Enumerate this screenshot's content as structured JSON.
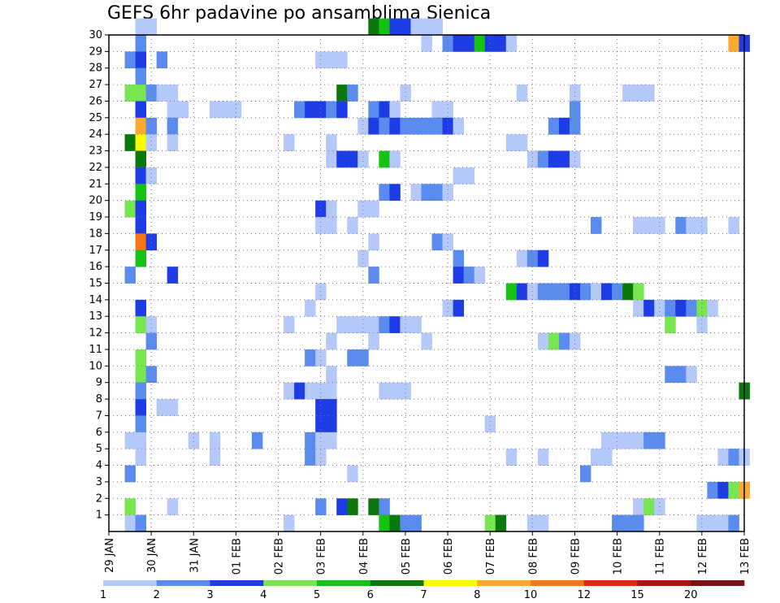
{
  "chart_data": {
    "type": "heatmap",
    "title": "GEFS 6hr padavine po ansamblima Sjenica",
    "xlabel": "",
    "ylabel": "",
    "x_ticks": [
      "29 JAN",
      "30 JAN",
      "31 JAN",
      "01 FEB",
      "02 FEB",
      "03 FEB",
      "04 FEB",
      "05 FEB",
      "06 FEB",
      "07 FEB",
      "08 FEB",
      "09 FEB",
      "10 FEB",
      "11 FEB",
      "12 FEB",
      "13 FEB"
    ],
    "x_range_steps_6h": [
      0,
      60
    ],
    "y_ticks": [
      "1",
      "2",
      "3",
      "4",
      "5",
      "6",
      "7",
      "8",
      "9",
      "10",
      "11",
      "12",
      "13",
      "14",
      "15",
      "16",
      "17",
      "18",
      "19",
      "20",
      "21",
      "22",
      "23",
      "24",
      "25",
      "26",
      "27",
      "28",
      "29",
      "30"
    ],
    "y_range_members": [
      0,
      30
    ],
    "grid": "dotted",
    "legend": {
      "placement": "bottom",
      "labels": [
        "1",
        "2",
        "3",
        "4",
        "5",
        "6",
        "7",
        "8",
        "10",
        "12",
        "15",
        "20"
      ],
      "colors": [
        "#b4c8fa",
        "#5a8cf0",
        "#1e3ce6",
        "#78e650",
        "#14c314",
        "#0a780a",
        "#fafa00",
        "#faaa2d",
        "#f57814",
        "#e1280f",
        "#b40f0f",
        "#781414"
      ]
    },
    "cells": [
      [
        30,
        3,
        1
      ],
      [
        30,
        4,
        1
      ],
      [
        30,
        25,
        6
      ],
      [
        30,
        26,
        5
      ],
      [
        30,
        27,
        3
      ],
      [
        30,
        28,
        3
      ],
      [
        30,
        29,
        1
      ],
      [
        30,
        30,
        1
      ],
      [
        30,
        31,
        1
      ],
      [
        29,
        3,
        2
      ],
      [
        29,
        30,
        1
      ],
      [
        29,
        32,
        2
      ],
      [
        29,
        33,
        3
      ],
      [
        29,
        34,
        3
      ],
      [
        29,
        35,
        5
      ],
      [
        29,
        36,
        3
      ],
      [
        29,
        37,
        3
      ],
      [
        29,
        38,
        1
      ],
      [
        29,
        59,
        8
      ],
      [
        29,
        60,
        3
      ],
      [
        28,
        2,
        2
      ],
      [
        28,
        3,
        3
      ],
      [
        28,
        5,
        2
      ],
      [
        28,
        20,
        1
      ],
      [
        28,
        21,
        1
      ],
      [
        28,
        22,
        1
      ],
      [
        27,
        3,
        2
      ],
      [
        26,
        2,
        4
      ],
      [
        26,
        3,
        4
      ],
      [
        26,
        4,
        2
      ],
      [
        26,
        5,
        1
      ],
      [
        26,
        6,
        1
      ],
      [
        26,
        22,
        6
      ],
      [
        26,
        23,
        2
      ],
      [
        26,
        28,
        1
      ],
      [
        26,
        39,
        1
      ],
      [
        26,
        44,
        1
      ],
      [
        26,
        49,
        1
      ],
      [
        26,
        50,
        1
      ],
      [
        26,
        51,
        1
      ],
      [
        25,
        3,
        3
      ],
      [
        25,
        6,
        1
      ],
      [
        25,
        7,
        1
      ],
      [
        25,
        10,
        1
      ],
      [
        25,
        11,
        1
      ],
      [
        25,
        12,
        1
      ],
      [
        25,
        18,
        2
      ],
      [
        25,
        19,
        3
      ],
      [
        25,
        20,
        3
      ],
      [
        25,
        21,
        2
      ],
      [
        25,
        22,
        3
      ],
      [
        25,
        25,
        2
      ],
      [
        25,
        26,
        3
      ],
      [
        25,
        27,
        1
      ],
      [
        25,
        31,
        1
      ],
      [
        25,
        32,
        1
      ],
      [
        25,
        44,
        2
      ],
      [
        24,
        3,
        8
      ],
      [
        24,
        4,
        2
      ],
      [
        24,
        6,
        2
      ],
      [
        24,
        24,
        1
      ],
      [
        24,
        25,
        3
      ],
      [
        24,
        26,
        2
      ],
      [
        24,
        27,
        3
      ],
      [
        24,
        28,
        2
      ],
      [
        24,
        29,
        2
      ],
      [
        24,
        30,
        2
      ],
      [
        24,
        31,
        2
      ],
      [
        24,
        32,
        3
      ],
      [
        24,
        33,
        1
      ],
      [
        24,
        42,
        2
      ],
      [
        24,
        43,
        3
      ],
      [
        24,
        44,
        2
      ],
      [
        23,
        2,
        6
      ],
      [
        23,
        3,
        7
      ],
      [
        23,
        4,
        1
      ],
      [
        23,
        6,
        1
      ],
      [
        23,
        17,
        1
      ],
      [
        23,
        21,
        1
      ],
      [
        23,
        38,
        1
      ],
      [
        23,
        39,
        1
      ],
      [
        22,
        3,
        6
      ],
      [
        22,
        21,
        1
      ],
      [
        22,
        22,
        3
      ],
      [
        22,
        23,
        3
      ],
      [
        22,
        24,
        1
      ],
      [
        22,
        26,
        5
      ],
      [
        22,
        27,
        1
      ],
      [
        22,
        40,
        1
      ],
      [
        22,
        41,
        2
      ],
      [
        22,
        42,
        3
      ],
      [
        22,
        43,
        3
      ],
      [
        22,
        44,
        1
      ],
      [
        21,
        3,
        3
      ],
      [
        21,
        4,
        1
      ],
      [
        21,
        33,
        1
      ],
      [
        21,
        34,
        1
      ],
      [
        20,
        3,
        5
      ],
      [
        20,
        26,
        2
      ],
      [
        20,
        27,
        3
      ],
      [
        20,
        29,
        1
      ],
      [
        20,
        30,
        2
      ],
      [
        20,
        31,
        2
      ],
      [
        20,
        32,
        1
      ],
      [
        19,
        2,
        4
      ],
      [
        19,
        3,
        3
      ],
      [
        19,
        20,
        3
      ],
      [
        19,
        21,
        1
      ],
      [
        19,
        24,
        1
      ],
      [
        19,
        25,
        1
      ],
      [
        18,
        3,
        3
      ],
      [
        18,
        20,
        1
      ],
      [
        18,
        21,
        1
      ],
      [
        18,
        23,
        1
      ],
      [
        18,
        46,
        2
      ],
      [
        18,
        50,
        1
      ],
      [
        18,
        51,
        1
      ],
      [
        18,
        52,
        1
      ],
      [
        18,
        54,
        2
      ],
      [
        18,
        55,
        1
      ],
      [
        18,
        56,
        1
      ],
      [
        18,
        59,
        1
      ],
      [
        17,
        3,
        9
      ],
      [
        17,
        4,
        3
      ],
      [
        17,
        25,
        1
      ],
      [
        17,
        31,
        2
      ],
      [
        17,
        32,
        1
      ],
      [
        16,
        3,
        5
      ],
      [
        16,
        24,
        1
      ],
      [
        16,
        33,
        2
      ],
      [
        16,
        39,
        1
      ],
      [
        16,
        40,
        2
      ],
      [
        16,
        41,
        3
      ],
      [
        15,
        2,
        2
      ],
      [
        15,
        6,
        3
      ],
      [
        15,
        25,
        2
      ],
      [
        15,
        33,
        3
      ],
      [
        15,
        34,
        2
      ],
      [
        15,
        35,
        1
      ],
      [
        14,
        20,
        1
      ],
      [
        14,
        38,
        5
      ],
      [
        14,
        39,
        3
      ],
      [
        14,
        40,
        1
      ],
      [
        14,
        41,
        2
      ],
      [
        14,
        42,
        2
      ],
      [
        14,
        43,
        2
      ],
      [
        14,
        44,
        3
      ],
      [
        14,
        45,
        2
      ],
      [
        14,
        46,
        1
      ],
      [
        14,
        47,
        3
      ],
      [
        14,
        48,
        2
      ],
      [
        14,
        49,
        6
      ],
      [
        14,
        50,
        4
      ],
      [
        13,
        3,
        3
      ],
      [
        13,
        19,
        1
      ],
      [
        13,
        32,
        1
      ],
      [
        13,
        33,
        3
      ],
      [
        13,
        50,
        1
      ],
      [
        13,
        51,
        3
      ],
      [
        13,
        52,
        1
      ],
      [
        13,
        53,
        2
      ],
      [
        13,
        54,
        3
      ],
      [
        13,
        55,
        2
      ],
      [
        13,
        56,
        4
      ],
      [
        13,
        57,
        1
      ],
      [
        12,
        3,
        4
      ],
      [
        12,
        4,
        1
      ],
      [
        12,
        17,
        1
      ],
      [
        12,
        22,
        1
      ],
      [
        12,
        23,
        1
      ],
      [
        12,
        24,
        1
      ],
      [
        12,
        25,
        1
      ],
      [
        12,
        26,
        2
      ],
      [
        12,
        27,
        3
      ],
      [
        12,
        28,
        1
      ],
      [
        12,
        29,
        1
      ],
      [
        12,
        53,
        4
      ],
      [
        12,
        56,
        1
      ],
      [
        11,
        4,
        2
      ],
      [
        11,
        21,
        1
      ],
      [
        11,
        25,
        1
      ],
      [
        11,
        30,
        1
      ],
      [
        11,
        41,
        1
      ],
      [
        11,
        42,
        4
      ],
      [
        11,
        43,
        2
      ],
      [
        11,
        44,
        1
      ],
      [
        10,
        3,
        4
      ],
      [
        10,
        19,
        2
      ],
      [
        10,
        20,
        1
      ],
      [
        10,
        23,
        2
      ],
      [
        10,
        24,
        2
      ],
      [
        9,
        3,
        4
      ],
      [
        9,
        4,
        2
      ],
      [
        9,
        21,
        1
      ],
      [
        9,
        53,
        2
      ],
      [
        9,
        54,
        2
      ],
      [
        9,
        55,
        1
      ],
      [
        8,
        3,
        2
      ],
      [
        8,
        17,
        1
      ],
      [
        8,
        18,
        3
      ],
      [
        8,
        19,
        1
      ],
      [
        8,
        20,
        1
      ],
      [
        8,
        21,
        1
      ],
      [
        8,
        26,
        1
      ],
      [
        8,
        27,
        1
      ],
      [
        8,
        28,
        1
      ],
      [
        8,
        60,
        6
      ],
      [
        7,
        3,
        3
      ],
      [
        7,
        5,
        1
      ],
      [
        7,
        6,
        1
      ],
      [
        7,
        20,
        3
      ],
      [
        7,
        21,
        3
      ],
      [
        6,
        3,
        2
      ],
      [
        6,
        20,
        3
      ],
      [
        6,
        21,
        3
      ],
      [
        6,
        36,
        1
      ],
      [
        5,
        2,
        1
      ],
      [
        5,
        3,
        1
      ],
      [
        5,
        8,
        1
      ],
      [
        5,
        10,
        1
      ],
      [
        5,
        14,
        2
      ],
      [
        5,
        19,
        2
      ],
      [
        5,
        20,
        1
      ],
      [
        5,
        21,
        1
      ],
      [
        5,
        47,
        1
      ],
      [
        5,
        48,
        1
      ],
      [
        5,
        49,
        1
      ],
      [
        5,
        50,
        1
      ],
      [
        5,
        51,
        2
      ],
      [
        5,
        52,
        2
      ],
      [
        4,
        3,
        1
      ],
      [
        4,
        10,
        1
      ],
      [
        4,
        19,
        2
      ],
      [
        4,
        20,
        1
      ],
      [
        4,
        38,
        1
      ],
      [
        4,
        41,
        1
      ],
      [
        4,
        46,
        1
      ],
      [
        4,
        47,
        1
      ],
      [
        4,
        58,
        1
      ],
      [
        4,
        59,
        2
      ],
      [
        4,
        60,
        1
      ],
      [
        3,
        2,
        2
      ],
      [
        3,
        23,
        1
      ],
      [
        3,
        45,
        2
      ],
      [
        2,
        57,
        2
      ],
      [
        2,
        58,
        3
      ],
      [
        2,
        59,
        4
      ],
      [
        2,
        60,
        8
      ],
      [
        1,
        2,
        4
      ],
      [
        1,
        6,
        1
      ],
      [
        1,
        20,
        2
      ],
      [
        1,
        22,
        3
      ],
      [
        1,
        23,
        6
      ],
      [
        1,
        25,
        6
      ],
      [
        1,
        26,
        2
      ],
      [
        1,
        50,
        1
      ],
      [
        1,
        51,
        4
      ],
      [
        1,
        52,
        1
      ],
      [
        0,
        2,
        1
      ],
      [
        0,
        3,
        2
      ],
      [
        0,
        17,
        1
      ],
      [
        0,
        26,
        5
      ],
      [
        0,
        27,
        6
      ],
      [
        0,
        28,
        2
      ],
      [
        0,
        29,
        2
      ],
      [
        0,
        36,
        4
      ],
      [
        0,
        37,
        6
      ],
      [
        0,
        40,
        1
      ],
      [
        0,
        41,
        1
      ],
      [
        0,
        48,
        2
      ],
      [
        0,
        49,
        2
      ],
      [
        0,
        50,
        2
      ],
      [
        0,
        56,
        1
      ],
      [
        0,
        57,
        1
      ],
      [
        0,
        58,
        1
      ],
      [
        0,
        59,
        2
      ]
    ]
  }
}
